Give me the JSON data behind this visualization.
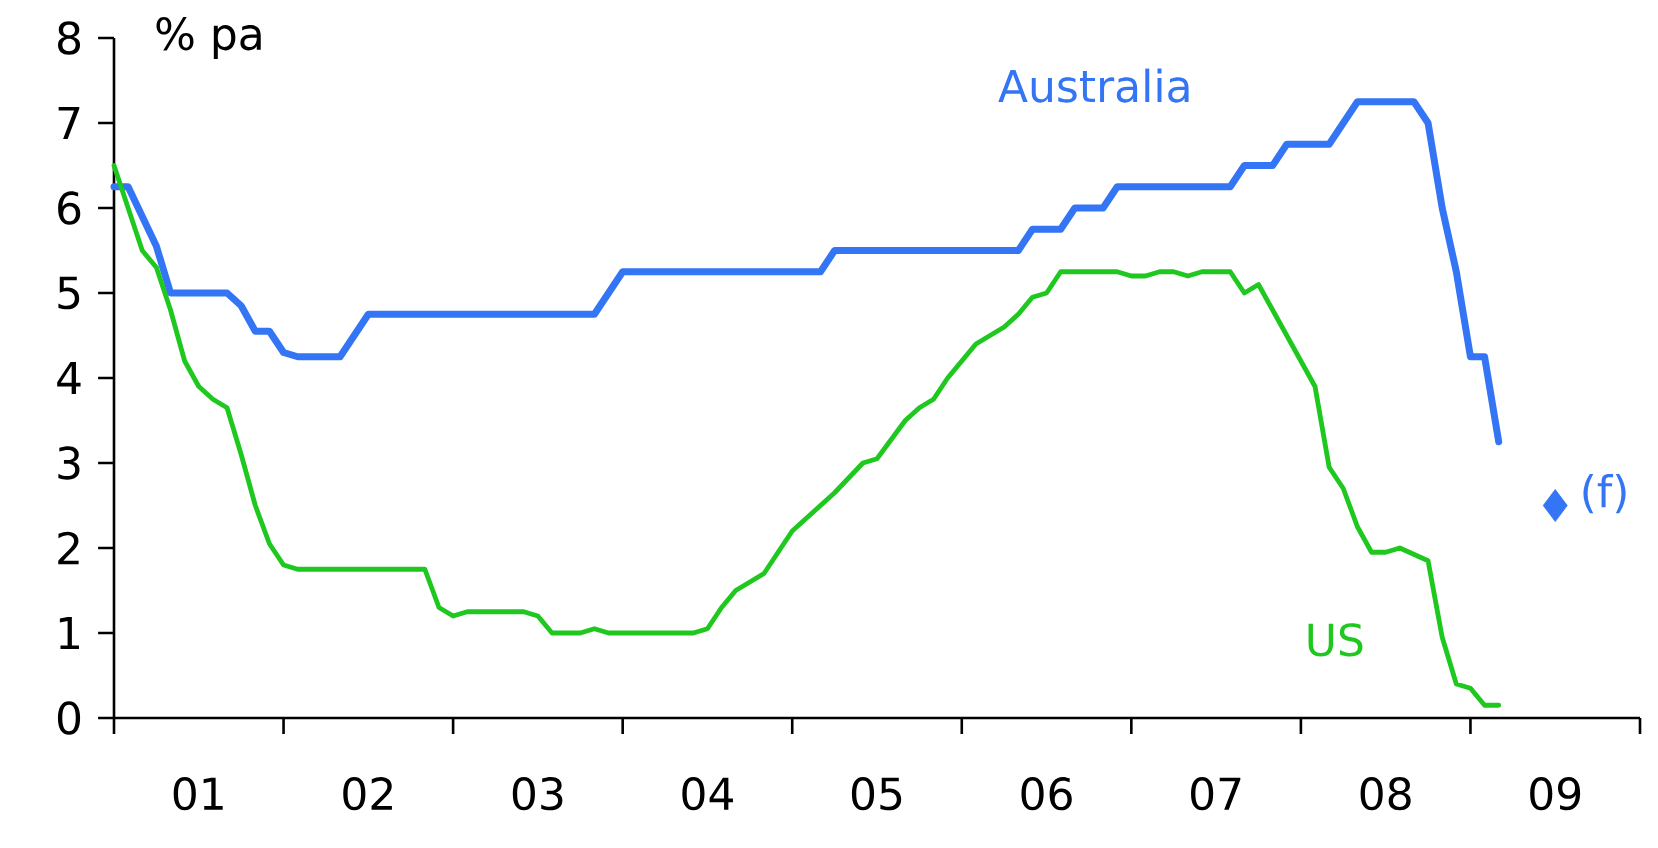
{
  "chart_data": {
    "type": "line",
    "ylabel": "% pa",
    "xlim": [
      "2001-01",
      "2010-01"
    ],
    "ylim": [
      0,
      8
    ],
    "xticks": [
      {
        "value": "2001-01",
        "label": null
      },
      {
        "value": "2002-01",
        "label": null
      },
      {
        "value": "2003-01",
        "label": null
      },
      {
        "value": "2004-01",
        "label": null
      },
      {
        "value": "2005-01",
        "label": null
      },
      {
        "value": "2006-01",
        "label": null
      },
      {
        "value": "2007-01",
        "label": null
      },
      {
        "value": "2008-01",
        "label": null
      },
      {
        "value": "2009-01",
        "label": null
      },
      {
        "value": "2010-01",
        "label": null
      },
      {
        "value": "2001-07",
        "label": "01"
      },
      {
        "value": "2002-07",
        "label": "02"
      },
      {
        "value": "2003-07",
        "label": "03"
      },
      {
        "value": "2004-07",
        "label": "04"
      },
      {
        "value": "2005-07",
        "label": "05"
      },
      {
        "value": "2006-07",
        "label": "06"
      },
      {
        "value": "2007-07",
        "label": "07"
      },
      {
        "value": "2008-07",
        "label": "08"
      },
      {
        "value": "2009-07",
        "label": "09"
      }
    ],
    "yticks": [
      0,
      1,
      2,
      3,
      4,
      5,
      6,
      7,
      8
    ],
    "legend": false,
    "series": [
      {
        "name": "Australia",
        "color": "#3375f5",
        "marker": "none",
        "x": [
          "2001-01",
          "2001-02",
          "2001-04",
          "2001-05",
          "2001-09",
          "2001-10",
          "2001-11",
          "2001-12",
          "2002-01",
          "2002-02",
          "2002-05",
          "2002-07",
          "2003-11",
          "2004-01",
          "2005-03",
          "2005-04",
          "2006-05",
          "2006-06",
          "2006-08",
          "2006-09",
          "2006-11",
          "2006-12",
          "2007-08",
          "2007-09",
          "2007-11",
          "2007-12",
          "2008-03",
          "2008-05",
          "2008-09",
          "2008-10",
          "2008-11",
          "2008-12",
          "2009-01",
          "2009-02",
          "2009-03"
        ],
        "values": [
          6.25,
          6.25,
          5.55,
          5.0,
          5.0,
          4.85,
          4.55,
          4.55,
          4.3,
          4.25,
          4.25,
          4.75,
          4.75,
          5.25,
          5.25,
          5.5,
          5.5,
          5.75,
          5.75,
          6.0,
          6.0,
          6.25,
          6.25,
          6.5,
          6.5,
          6.75,
          6.75,
          7.25,
          7.25,
          7.0,
          6.0,
          5.25,
          4.25,
          4.25,
          3.25
        ]
      },
      {
        "name": "US",
        "color": "#1ec81e",
        "marker": "none",
        "x": [
          "2001-01",
          "2001-03",
          "2001-04",
          "2001-05",
          "2001-06",
          "2001-07",
          "2001-08",
          "2001-09",
          "2001-10",
          "2001-11",
          "2001-12",
          "2002-01",
          "2002-02",
          "2002-11",
          "2002-12",
          "2003-01",
          "2003-02",
          "2003-06",
          "2003-07",
          "2003-08",
          "2003-09",
          "2003-10",
          "2003-11",
          "2003-12",
          "2004-06",
          "2004-07",
          "2004-08",
          "2004-09",
          "2004-11",
          "2004-12",
          "2005-01",
          "2005-02",
          "2005-03",
          "2005-04",
          "2005-06",
          "2005-07",
          "2005-09",
          "2005-10",
          "2005-11",
          "2005-12",
          "2006-01",
          "2006-02",
          "2006-04",
          "2006-05",
          "2006-06",
          "2006-07",
          "2006-08",
          "2006-12",
          "2007-01",
          "2007-02",
          "2007-03",
          "2007-04",
          "2007-05",
          "2007-06",
          "2007-08",
          "2007-09",
          "2007-10",
          "2007-11",
          "2007-12",
          "2008-01",
          "2008-02",
          "2008-03",
          "2008-04",
          "2008-05",
          "2008-06",
          "2008-07",
          "2008-08",
          "2008-10",
          "2008-11",
          "2008-12",
          "2009-01",
          "2009-02",
          "2009-03"
        ],
        "values": [
          6.5,
          5.5,
          5.3,
          4.8,
          4.2,
          3.9,
          3.75,
          3.65,
          3.1,
          2.5,
          2.05,
          1.8,
          1.75,
          1.75,
          1.3,
          1.2,
          1.25,
          1.25,
          1.2,
          1.0,
          1.0,
          1.0,
          1.05,
          1.0,
          1.0,
          1.05,
          1.3,
          1.5,
          1.7,
          1.95,
          2.2,
          2.35,
          2.5,
          2.65,
          3.0,
          3.05,
          3.5,
          3.65,
          3.75,
          4.0,
          4.2,
          4.4,
          4.6,
          4.75,
          4.95,
          5.0,
          5.25,
          5.25,
          5.2,
          5.2,
          5.25,
          5.25,
          5.2,
          5.25,
          5.25,
          5.0,
          5.1,
          4.8,
          4.5,
          4.2,
          3.9,
          2.95,
          2.7,
          2.25,
          1.95,
          1.95,
          2.0,
          1.85,
          0.95,
          0.4,
          0.35,
          0.15,
          0.15
        ]
      },
      {
        "type": "scatter",
        "color": "#3375f5",
        "marker": "diamond",
        "x": [
          "2009-07"
        ],
        "values": [
          2.5
        ]
      }
    ],
    "annotations": [
      {
        "text": "(f)",
        "x": "2009-07",
        "y": 2.5
      }
    ]
  }
}
